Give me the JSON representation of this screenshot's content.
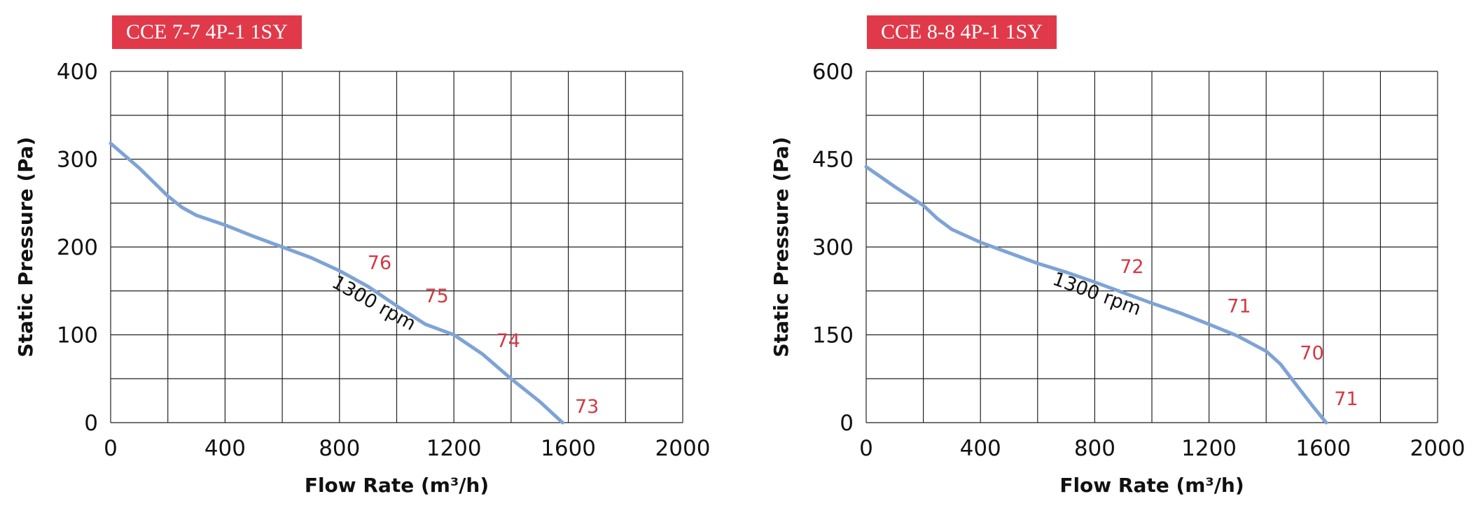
{
  "colors": {
    "badge": "#e03a4a",
    "curve": "#7ea3d6",
    "annotation": "#d03a45",
    "grid": "#222222"
  },
  "chart_data": [
    {
      "type": "line",
      "title": "CCE 7-7 4P-1 1SY",
      "xlabel": "Flow Rate (m³/h)",
      "ylabel": "Static Pressure (Pa)",
      "xlim": [
        0,
        2000
      ],
      "ylim": [
        0,
        400
      ],
      "x_ticks": [
        0,
        400,
        800,
        1200,
        1600,
        2000
      ],
      "y_ticks": [
        0,
        100,
        200,
        300,
        400
      ],
      "x_gridstep": 200,
      "y_gridstep": 50,
      "grid": true,
      "series": [
        {
          "name": "1300 rpm",
          "points": [
            [
              0,
              318
            ],
            [
              100,
              290
            ],
            [
              200,
              258
            ],
            [
              250,
              245
            ],
            [
              300,
              236
            ],
            [
              400,
              225
            ],
            [
              500,
              212
            ],
            [
              600,
              200
            ],
            [
              700,
              188
            ],
            [
              800,
              173
            ],
            [
              900,
              155
            ],
            [
              1000,
              133
            ],
            [
              1100,
              112
            ],
            [
              1200,
              100
            ],
            [
              1300,
              78
            ],
            [
              1400,
              50
            ],
            [
              1500,
              24
            ],
            [
              1580,
              0
            ]
          ]
        }
      ],
      "curve_label": {
        "text": "1300 rpm",
        "x": 910,
        "y": 130
      },
      "annotations": [
        {
          "text": "76",
          "x": 940,
          "y": 175
        },
        {
          "text": "75",
          "x": 1140,
          "y": 137
        },
        {
          "text": "74",
          "x": 1390,
          "y": 86
        },
        {
          "text": "73",
          "x": 1665,
          "y": 11
        }
      ]
    },
    {
      "type": "line",
      "title": "CCE 8-8 4P-1 1SY",
      "xlabel": "Flow Rate (m³/h)",
      "ylabel": "Static Pressure (Pa)",
      "xlim": [
        0,
        2000
      ],
      "ylim": [
        0,
        600
      ],
      "x_ticks": [
        0,
        400,
        800,
        1200,
        1600,
        2000
      ],
      "y_ticks": [
        0,
        150,
        300,
        450,
        600
      ],
      "x_gridstep": 200,
      "y_gridstep": 75,
      "grid": true,
      "series": [
        {
          "name": "1300 rpm",
          "points": [
            [
              0,
              437
            ],
            [
              100,
              403
            ],
            [
              200,
              371
            ],
            [
              250,
              348
            ],
            [
              300,
              330
            ],
            [
              400,
              308
            ],
            [
              500,
              290
            ],
            [
              600,
              272
            ],
            [
              700,
              257
            ],
            [
              800,
              240
            ],
            [
              900,
              222
            ],
            [
              1000,
              204
            ],
            [
              1100,
              187
            ],
            [
              1200,
              168
            ],
            [
              1300,
              148
            ],
            [
              1400,
              122
            ],
            [
              1450,
              100
            ],
            [
              1500,
              68
            ],
            [
              1560,
              30
            ],
            [
              1610,
              0
            ]
          ]
        }
      ],
      "curve_label": {
        "text": "1300 rpm",
        "x": 800,
        "y": 210
      },
      "annotations": [
        {
          "text": "72",
          "x": 930,
          "y": 256
        },
        {
          "text": "71",
          "x": 1305,
          "y": 188
        },
        {
          "text": "70",
          "x": 1560,
          "y": 108
        },
        {
          "text": "71",
          "x": 1680,
          "y": 30
        }
      ]
    }
  ]
}
